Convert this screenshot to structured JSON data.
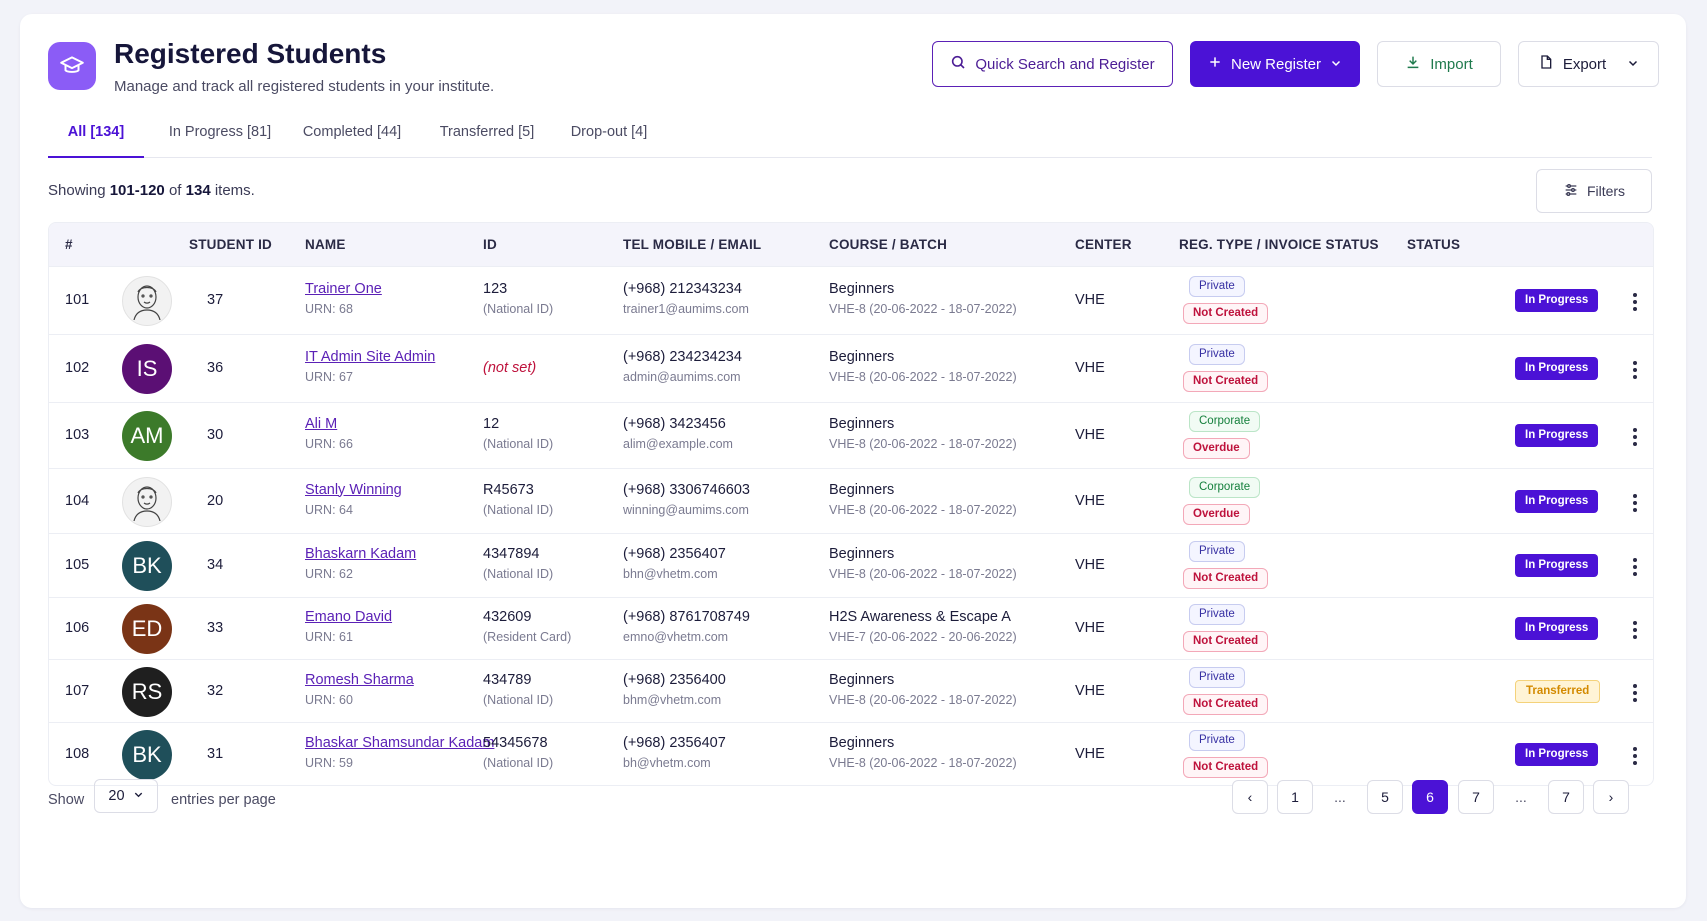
{
  "header": {
    "title": "Registered Students",
    "subtitle": "Manage and track all registered students in your institute.",
    "buttons": {
      "quick_search": "Quick Search and Register",
      "new_register": "New Register",
      "import": "Import",
      "export": "Export"
    }
  },
  "tabs": [
    {
      "label": "All [134]",
      "active": true
    },
    {
      "label": "In Progress [81]",
      "active": false
    },
    {
      "label": "Completed [44]",
      "active": false
    },
    {
      "label": "Transferred [5]",
      "active": false
    },
    {
      "label": "Drop-out [4]",
      "active": false
    }
  ],
  "summary": {
    "prefix": "Showing",
    "range": "101-120",
    "of": "of",
    "total": "134",
    "suffix": "items."
  },
  "filters_label": "Filters",
  "table": {
    "columns": [
      "#",
      "STUDENT ID",
      "NAME",
      "ID",
      "TEL MOBILE / EMAIL",
      "COURSE / BATCH",
      "CENTER",
      "REG. TYPE / INVOICE STATUS",
      "STATUS"
    ],
    "rows": [
      {
        "num": "101",
        "avatar": {
          "type": "photo",
          "initials": "",
          "color": "#f2f2f2"
        },
        "student_id": "37",
        "name": "Trainer One",
        "urn": "URN: 68",
        "id_value": "123",
        "id_type": "(National ID)",
        "id_not_set": false,
        "tel": "(+968) 212343234",
        "email": "trainer1@aumims.com",
        "course": "Beginners",
        "batch": "VHE-8 (20-06-2022 - 18-07-2022)",
        "center": "VHE",
        "reg_type": "Private",
        "invoice_status": "Not Created",
        "status": "In Progress"
      },
      {
        "num": "102",
        "avatar": {
          "type": "initials",
          "initials": "IS",
          "color": "#5b0f74"
        },
        "student_id": "36",
        "name": "IT Admin Site Admin",
        "urn": "URN: 67",
        "id_value": "(not set)",
        "id_type": "",
        "id_not_set": true,
        "tel": "(+968) 234234234",
        "email": "admin@aumims.com",
        "course": "Beginners",
        "batch": "VHE-8 (20-06-2022 - 18-07-2022)",
        "center": "VHE",
        "reg_type": "Private",
        "invoice_status": "Not Created",
        "status": "In Progress"
      },
      {
        "num": "103",
        "avatar": {
          "type": "initials",
          "initials": "AM",
          "color": "#3c7a2a"
        },
        "student_id": "30",
        "name": "Ali M",
        "urn": "URN: 66",
        "id_value": "12",
        "id_type": "(National ID)",
        "id_not_set": false,
        "tel": "(+968) 3423456",
        "email": "alim@example.com",
        "course": "Beginners",
        "batch": "VHE-8 (20-06-2022 - 18-07-2022)",
        "center": "VHE",
        "reg_type": "Corporate",
        "invoice_status": "Overdue",
        "status": "In Progress"
      },
      {
        "num": "104",
        "avatar": {
          "type": "photo",
          "initials": "",
          "color": "#f2f2f2"
        },
        "student_id": "20",
        "name": "Stanly Winning",
        "urn": "URN: 64",
        "id_value": "R45673",
        "id_type": "(National ID)",
        "id_not_set": false,
        "tel": "(+968) 3306746603",
        "email": "winning@aumims.com",
        "course": "Beginners",
        "batch": "VHE-8 (20-06-2022 - 18-07-2022)",
        "center": "VHE",
        "reg_type": "Corporate",
        "invoice_status": "Overdue",
        "status": "In Progress"
      },
      {
        "num": "105",
        "avatar": {
          "type": "initials",
          "initials": "BK",
          "color": "#1f4f5a"
        },
        "student_id": "34",
        "name": "Bhaskarn Kadam",
        "urn": "URN: 62",
        "id_value": "4347894",
        "id_type": "(National ID)",
        "id_not_set": false,
        "tel": "(+968) 2356407",
        "email": "bhn@vhetm.com",
        "course": "Beginners",
        "batch": "VHE-8 (20-06-2022 - 18-07-2022)",
        "center": "VHE",
        "reg_type": "Private",
        "invoice_status": "Not Created",
        "status": "In Progress"
      },
      {
        "num": "106",
        "avatar": {
          "type": "initials",
          "initials": "ED",
          "color": "#7a3416"
        },
        "student_id": "33",
        "name": "Emano David",
        "urn": "URN: 61",
        "id_value": "432609",
        "id_type": "(Resident Card)",
        "id_not_set": false,
        "tel": "(+968) 8761708749",
        "email": "emno@vhetm.com",
        "course": "H2S Awareness & Escape A",
        "batch": "VHE-7 (20-06-2022 - 20-06-2022)",
        "center": "VHE",
        "reg_type": "Private",
        "invoice_status": "Not Created",
        "status": "In Progress"
      },
      {
        "num": "107",
        "avatar": {
          "type": "initials",
          "initials": "RS",
          "color": "#1f1f1f"
        },
        "student_id": "32",
        "name": "Romesh Sharma",
        "urn": "URN: 60",
        "id_value": "434789",
        "id_type": "(National ID)",
        "id_not_set": false,
        "tel": "(+968) 2356400",
        "email": "bhm@vhetm.com",
        "course": "Beginners",
        "batch": "VHE-8 (20-06-2022 - 18-07-2022)",
        "center": "VHE",
        "reg_type": "Private",
        "invoice_status": "Not Created",
        "status": "Transferred"
      },
      {
        "num": "108",
        "avatar": {
          "type": "initials",
          "initials": "BK",
          "color": "#1f4f5a"
        },
        "student_id": "31",
        "name": "Bhaskar Shamsundar Kadam",
        "urn": "URN: 59",
        "id_value": "54345678",
        "id_type": "(National ID)",
        "id_not_set": false,
        "tel": "(+968) 2356407",
        "email": "bh@vhetm.com",
        "course": "Beginners",
        "batch": "VHE-8 (20-06-2022 - 18-07-2022)",
        "center": "VHE",
        "reg_type": "Private",
        "invoice_status": "Not Created",
        "status": "In Progress"
      }
    ]
  },
  "footer": {
    "show_label": "Show",
    "per_page": "20",
    "entries_label": "entries per page",
    "pages": [
      "‹",
      "1",
      "...",
      "5",
      "6",
      "7",
      "...",
      "7",
      "›"
    ],
    "current_page": "6"
  },
  "colors": {
    "accent": "#4b12d6",
    "logo_bg": "#8b5cf6",
    "danger": "#be123c",
    "success": "#15803d",
    "warning": "#d38a00"
  },
  "icons": {
    "logo": "graduation-cap-icon",
    "search": "search-icon",
    "plus": "plus-icon",
    "import": "download-icon",
    "export": "file-icon",
    "filters": "sliders-icon",
    "row_menu": "kebab-icon"
  }
}
